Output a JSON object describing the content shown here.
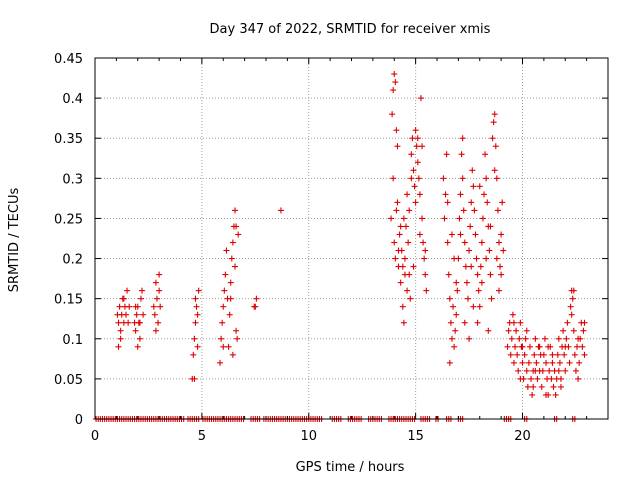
{
  "chart_data": {
    "type": "scatter",
    "title": "Day 347 of 2022, SRMTID for receiver xmis",
    "xlabel": "GPS time / hours",
    "ylabel": "SRMTID / TECUs",
    "xlim": [
      0,
      24
    ],
    "ylim": [
      0,
      0.45
    ],
    "xticks": [
      0,
      5,
      10,
      15,
      20
    ],
    "xtick_labels": [
      "0",
      "5",
      "10",
      "15",
      "20"
    ],
    "yticks": [
      0,
      0.05,
      0.1,
      0.15,
      0.2,
      0.25,
      0.3,
      0.35,
      0.4,
      0.45
    ],
    "ytick_labels": [
      "0",
      "0.05",
      "0.1",
      "0.15",
      "0.2",
      "0.25",
      "0.3",
      "0.35",
      "0.4",
      "0.45"
    ],
    "grid": true,
    "marker": "+",
    "color": "#e00000",
    "series": [
      {
        "name": "SRMTID",
        "points": [
          [
            1.05,
            0.13
          ],
          [
            1.1,
            0.12
          ],
          [
            1.15,
            0.14
          ],
          [
            1.2,
            0.11
          ],
          [
            1.25,
            0.13
          ],
          [
            1.3,
            0.15
          ],
          [
            1.35,
            0.12
          ],
          [
            1.4,
            0.14
          ],
          [
            1.45,
            0.13
          ],
          [
            1.5,
            0.16
          ],
          [
            1.55,
            0.12
          ],
          [
            1.1,
            0.09
          ],
          [
            1.2,
            0.1
          ],
          [
            1.35,
            0.15
          ],
          [
            1.6,
            0.14
          ],
          [
            1.85,
            0.12
          ],
          [
            1.9,
            0.11
          ],
          [
            1.95,
            0.13
          ],
          [
            2.0,
            0.14
          ],
          [
            2.05,
            0.12
          ],
          [
            2.1,
            0.1
          ],
          [
            2.15,
            0.15
          ],
          [
            2.2,
            0.16
          ],
          [
            2.25,
            0.13
          ],
          [
            2.0,
            0.09
          ],
          [
            1.9,
            0.14
          ],
          [
            2.1,
            0.12
          ],
          [
            2.75,
            0.14
          ],
          [
            2.8,
            0.13
          ],
          [
            2.85,
            0.17
          ],
          [
            2.9,
            0.15
          ],
          [
            2.95,
            0.12
          ],
          [
            3.0,
            0.16
          ],
          [
            3.05,
            0.14
          ],
          [
            2.85,
            0.11
          ],
          [
            3.0,
            0.18
          ],
          [
            4.55,
            0.05
          ],
          [
            4.6,
            0.08
          ],
          [
            4.65,
            0.1
          ],
          [
            4.7,
            0.12
          ],
          [
            4.75,
            0.14
          ],
          [
            4.8,
            0.13
          ],
          [
            4.85,
            0.16
          ],
          [
            4.65,
            0.05
          ],
          [
            4.7,
            0.15
          ],
          [
            4.8,
            0.09
          ],
          [
            5.85,
            0.07
          ],
          [
            5.9,
            0.1
          ],
          [
            5.95,
            0.12
          ],
          [
            6.0,
            0.14
          ],
          [
            6.05,
            0.16
          ],
          [
            6.1,
            0.18
          ],
          [
            6.15,
            0.21
          ],
          [
            6.2,
            0.15
          ],
          [
            6.25,
            0.09
          ],
          [
            6.3,
            0.13
          ],
          [
            6.35,
            0.17
          ],
          [
            6.4,
            0.2
          ],
          [
            6.45,
            0.22
          ],
          [
            6.5,
            0.24
          ],
          [
            6.55,
            0.19
          ],
          [
            6.6,
            0.11
          ],
          [
            6.65,
            0.1
          ],
          [
            6.7,
            0.23
          ],
          [
            6.55,
            0.26
          ],
          [
            6.45,
            0.08
          ],
          [
            6.35,
            0.15
          ],
          [
            6.6,
            0.24
          ],
          [
            6.0,
            0.09
          ],
          [
            7.5,
            0.14
          ],
          [
            7.55,
            0.15
          ],
          [
            7.45,
            0.14
          ],
          [
            8.7,
            0.26
          ],
          [
            13.85,
            0.25
          ],
          [
            13.9,
            0.38
          ],
          [
            13.95,
            0.41
          ],
          [
            14.0,
            0.43
          ],
          [
            14.05,
            0.42
          ],
          [
            14.1,
            0.36
          ],
          [
            14.15,
            0.27
          ],
          [
            14.2,
            0.19
          ],
          [
            14.25,
            0.23
          ],
          [
            14.3,
            0.17
          ],
          [
            14.35,
            0.21
          ],
          [
            14.4,
            0.14
          ],
          [
            14.45,
            0.12
          ],
          [
            14.5,
            0.2
          ],
          [
            14.55,
            0.24
          ],
          [
            14.6,
            0.28
          ],
          [
            14.65,
            0.22
          ],
          [
            14.7,
            0.18
          ],
          [
            14.75,
            0.15
          ],
          [
            14.8,
            0.33
          ],
          [
            14.85,
            0.35
          ],
          [
            14.9,
            0.31
          ],
          [
            14.95,
            0.29
          ],
          [
            15.0,
            0.36
          ],
          [
            15.05,
            0.34
          ],
          [
            15.1,
            0.32
          ],
          [
            15.15,
            0.3
          ],
          [
            15.2,
            0.28
          ],
          [
            15.25,
            0.4
          ],
          [
            15.3,
            0.25
          ],
          [
            15.35,
            0.22
          ],
          [
            15.4,
            0.2
          ],
          [
            15.45,
            0.18
          ],
          [
            15.5,
            0.16
          ],
          [
            13.95,
            0.3
          ],
          [
            14.0,
            0.22
          ],
          [
            14.1,
            0.26
          ],
          [
            14.3,
            0.24
          ],
          [
            14.5,
            0.18
          ],
          [
            14.6,
            0.16
          ],
          [
            14.7,
            0.26
          ],
          [
            14.9,
            0.19
          ],
          [
            15.0,
            0.27
          ],
          [
            15.1,
            0.35
          ],
          [
            15.2,
            0.23
          ],
          [
            14.2,
            0.21
          ],
          [
            14.4,
            0.19
          ],
          [
            14.8,
            0.3
          ],
          [
            15.3,
            0.34
          ],
          [
            14.15,
            0.34
          ],
          [
            14.05,
            0.2
          ],
          [
            14.45,
            0.25
          ],
          [
            15.45,
            0.21
          ],
          [
            16.3,
            0.3
          ],
          [
            16.35,
            0.25
          ],
          [
            16.4,
            0.28
          ],
          [
            16.45,
            0.33
          ],
          [
            16.5,
            0.22
          ],
          [
            16.55,
            0.18
          ],
          [
            16.6,
            0.15
          ],
          [
            16.65,
            0.12
          ],
          [
            16.7,
            0.1
          ],
          [
            16.75,
            0.14
          ],
          [
            16.8,
            0.09
          ],
          [
            16.85,
            0.11
          ],
          [
            16.9,
            0.13
          ],
          [
            16.95,
            0.16
          ],
          [
            17.0,
            0.2
          ],
          [
            17.05,
            0.25
          ],
          [
            17.1,
            0.28
          ],
          [
            17.15,
            0.33
          ],
          [
            17.2,
            0.3
          ],
          [
            17.25,
            0.26
          ],
          [
            17.3,
            0.22
          ],
          [
            17.35,
            0.19
          ],
          [
            17.4,
            0.17
          ],
          [
            17.45,
            0.15
          ],
          [
            17.5,
            0.21
          ],
          [
            17.55,
            0.24
          ],
          [
            17.6,
            0.27
          ],
          [
            17.65,
            0.31
          ],
          [
            17.7,
            0.29
          ],
          [
            17.75,
            0.26
          ],
          [
            17.8,
            0.23
          ],
          [
            17.85,
            0.2
          ],
          [
            17.9,
            0.18
          ],
          [
            17.95,
            0.16
          ],
          [
            18.0,
            0.14
          ],
          [
            18.05,
            0.19
          ],
          [
            18.1,
            0.22
          ],
          [
            18.15,
            0.25
          ],
          [
            18.2,
            0.28
          ],
          [
            18.25,
            0.33
          ],
          [
            18.3,
            0.3
          ],
          [
            18.35,
            0.27
          ],
          [
            18.4,
            0.24
          ],
          [
            18.45,
            0.21
          ],
          [
            18.5,
            0.18
          ],
          [
            18.55,
            0.15
          ],
          [
            18.6,
            0.35
          ],
          [
            18.65,
            0.37
          ],
          [
            18.7,
            0.38
          ],
          [
            18.75,
            0.34
          ],
          [
            18.8,
            0.3
          ],
          [
            18.85,
            0.26
          ],
          [
            18.9,
            0.22
          ],
          [
            18.95,
            0.19
          ],
          [
            19.0,
            0.23
          ],
          [
            19.05,
            0.27
          ],
          [
            19.1,
            0.21
          ],
          [
            16.5,
            0.27
          ],
          [
            16.7,
            0.23
          ],
          [
            16.9,
            0.17
          ],
          [
            17.1,
            0.23
          ],
          [
            17.3,
            0.12
          ],
          [
            17.5,
            0.1
          ],
          [
            17.7,
            0.14
          ],
          [
            17.9,
            0.12
          ],
          [
            18.1,
            0.17
          ],
          [
            18.3,
            0.2
          ],
          [
            18.5,
            0.24
          ],
          [
            18.7,
            0.31
          ],
          [
            18.9,
            0.16
          ],
          [
            16.6,
            0.07
          ],
          [
            16.8,
            0.2
          ],
          [
            17.2,
            0.35
          ],
          [
            17.6,
            0.19
          ],
          [
            18.0,
            0.29
          ],
          [
            18.4,
            0.11
          ],
          [
            18.8,
            0.2
          ],
          [
            19.0,
            0.18
          ],
          [
            19.3,
            0.09
          ],
          [
            19.35,
            0.11
          ],
          [
            19.4,
            0.12
          ],
          [
            19.45,
            0.08
          ],
          [
            19.5,
            0.1
          ],
          [
            19.55,
            0.13
          ],
          [
            19.6,
            0.07
          ],
          [
            19.65,
            0.09
          ],
          [
            19.7,
            0.11
          ],
          [
            19.75,
            0.08
          ],
          [
            19.8,
            0.06
          ],
          [
            19.85,
            0.1
          ],
          [
            19.9,
            0.12
          ],
          [
            19.95,
            0.09
          ],
          [
            20.0,
            0.07
          ],
          [
            20.05,
            0.05
          ],
          [
            20.1,
            0.08
          ],
          [
            20.15,
            0.1
          ],
          [
            20.2,
            0.06
          ],
          [
            20.25,
            0.04
          ],
          [
            20.3,
            0.07
          ],
          [
            20.35,
            0.09
          ],
          [
            20.4,
            0.05
          ],
          [
            20.45,
            0.03
          ],
          [
            20.5,
            0.06
          ],
          [
            20.55,
            0.08
          ],
          [
            20.6,
            0.1
          ],
          [
            20.65,
            0.07
          ],
          [
            20.7,
            0.05
          ],
          [
            20.75,
            0.09
          ],
          [
            20.8,
            0.06
          ],
          [
            20.85,
            0.08
          ],
          [
            20.9,
            0.04
          ],
          [
            20.95,
            0.06
          ],
          [
            21.0,
            0.08
          ],
          [
            21.05,
            0.1
          ],
          [
            21.1,
            0.07
          ],
          [
            21.15,
            0.05
          ],
          [
            21.2,
            0.03
          ],
          [
            21.25,
            0.06
          ],
          [
            21.3,
            0.09
          ],
          [
            21.35,
            0.05
          ],
          [
            21.4,
            0.07
          ],
          [
            21.45,
            0.04
          ],
          [
            21.5,
            0.06
          ],
          [
            21.55,
            0.03
          ],
          [
            21.6,
            0.05
          ],
          [
            21.65,
            0.08
          ],
          [
            21.7,
            0.1
          ],
          [
            21.75,
            0.07
          ],
          [
            21.8,
            0.05
          ],
          [
            21.85,
            0.09
          ],
          [
            21.9,
            0.11
          ],
          [
            21.95,
            0.08
          ],
          [
            22.0,
            0.06
          ],
          [
            22.05,
            0.1
          ],
          [
            22.1,
            0.12
          ],
          [
            22.15,
            0.09
          ],
          [
            22.2,
            0.07
          ],
          [
            22.25,
            0.14
          ],
          [
            22.3,
            0.16
          ],
          [
            22.35,
            0.15
          ],
          [
            22.4,
            0.11
          ],
          [
            22.45,
            0.08
          ],
          [
            22.5,
            0.06
          ],
          [
            22.55,
            0.09
          ],
          [
            22.6,
            0.05
          ],
          [
            22.65,
            0.07
          ],
          [
            22.7,
            0.1
          ],
          [
            22.75,
            0.12
          ],
          [
            22.8,
            0.09
          ],
          [
            22.85,
            0.11
          ],
          [
            22.9,
            0.08
          ],
          [
            19.6,
            0.12
          ],
          [
            19.9,
            0.05
          ],
          [
            20.2,
            0.11
          ],
          [
            20.5,
            0.04
          ],
          [
            20.8,
            0.09
          ],
          [
            21.1,
            0.03
          ],
          [
            21.4,
            0.08
          ],
          [
            21.7,
            0.06
          ],
          [
            22.0,
            0.09
          ],
          [
            22.3,
            0.13
          ],
          [
            22.6,
            0.1
          ],
          [
            22.9,
            0.12
          ],
          [
            20.0,
            0.09
          ],
          [
            20.6,
            0.06
          ],
          [
            21.2,
            0.09
          ],
          [
            21.8,
            0.04
          ],
          [
            22.4,
            0.16
          ]
        ],
        "zero_ranges": [
          [
            0.05,
            4.15
          ],
          [
            4.35,
            4.9
          ],
          [
            5.05,
            7.0
          ],
          [
            7.3,
            7.7
          ],
          [
            7.9,
            10.6
          ],
          [
            11.1,
            11.5
          ],
          [
            11.85,
            12.5
          ],
          [
            12.8,
            13.4
          ],
          [
            13.75,
            14.95
          ],
          [
            15.25,
            15.7
          ],
          [
            15.95,
            16.05
          ],
          [
            16.45,
            16.65
          ],
          [
            17.0,
            17.2
          ],
          [
            19.15,
            19.45
          ],
          [
            20.1,
            20.25
          ],
          [
            21.5,
            21.65
          ],
          [
            22.35,
            22.5
          ]
        ]
      }
    ]
  }
}
